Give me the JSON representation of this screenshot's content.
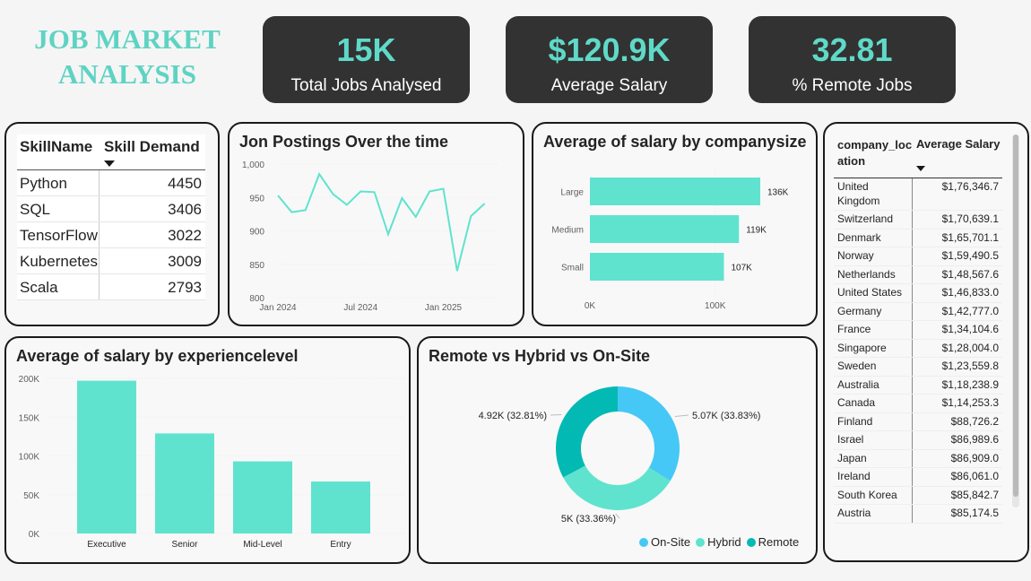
{
  "header": {
    "title_line1": "JOB MARKET",
    "title_line2": "ANALYSIS"
  },
  "kpis": [
    {
      "value": "15K",
      "label": "Total Jobs Analysed"
    },
    {
      "value": "$120.9K",
      "label": "Average Salary"
    },
    {
      "value": "32.81",
      "label": "% Remote Jobs"
    }
  ],
  "skills_table": {
    "headers": [
      "SkillName",
      "Skill Demand"
    ],
    "rows": [
      {
        "name": "Python",
        "value": "4450"
      },
      {
        "name": "SQL",
        "value": "3406"
      },
      {
        "name": "TensorFlow",
        "value": "3022"
      },
      {
        "name": "Kubernetes",
        "value": "3009"
      },
      {
        "name": "Scala",
        "value": "2793"
      }
    ]
  },
  "location_table": {
    "headers": [
      "company_loc ation",
      "Average Salary"
    ],
    "rows": [
      {
        "location": "United Kingdom",
        "salary": "$1,76,346.7"
      },
      {
        "location": "Switzerland",
        "salary": "$1,70,639.1"
      },
      {
        "location": "Denmark",
        "salary": "$1,65,701.1"
      },
      {
        "location": "Norway",
        "salary": "$1,59,490.5"
      },
      {
        "location": "Netherlands",
        "salary": "$1,48,567.6"
      },
      {
        "location": "United States",
        "salary": "$1,46,833.0"
      },
      {
        "location": "Germany",
        "salary": "$1,42,777.0"
      },
      {
        "location": "France",
        "salary": "$1,34,104.6"
      },
      {
        "location": "Singapore",
        "salary": "$1,28,004.0"
      },
      {
        "location": "Sweden",
        "salary": "$1,23,559.8"
      },
      {
        "location": "Australia",
        "salary": "$1,18,238.9"
      },
      {
        "location": "Canada",
        "salary": "$1,14,253.3"
      },
      {
        "location": "Finland",
        "salary": "$88,726.2"
      },
      {
        "location": "Israel",
        "salary": "$86,989.6"
      },
      {
        "location": "Japan",
        "salary": "$86,909.0"
      },
      {
        "location": "Ireland",
        "salary": "$86,061.0"
      },
      {
        "location": "South Korea",
        "salary": "$85,842.7"
      },
      {
        "location": "Austria",
        "salary": "$85,174.5"
      }
    ]
  },
  "colors": {
    "teal": "#5fe3cf",
    "onsite": "#45c8f5",
    "hybrid": "#5fe3cf",
    "remote": "#03b9b4",
    "kpi_bg": "#323232",
    "title": "#5fd3c3"
  },
  "chart_data": [
    {
      "type": "line",
      "title": "Jon Postings Over the time",
      "x": [
        "2024-01",
        "2024-02",
        "2024-03",
        "2024-04",
        "2024-05",
        "2024-06",
        "2024-07",
        "2024-08",
        "2024-09",
        "2024-10",
        "2024-11",
        "2024-12",
        "2025-01",
        "2025-02",
        "2025-03",
        "2025-04",
        "2025-05"
      ],
      "values": [
        953,
        928,
        931,
        985,
        955,
        939,
        959,
        958,
        895,
        949,
        921,
        959,
        963,
        840,
        922,
        941,
        null
      ],
      "x_ticks": [
        "Jan 2024",
        "Jul 2024",
        "Jan 2025"
      ],
      "y_ticks": [
        "1,000",
        "950",
        "900",
        "850",
        "800"
      ],
      "ylim": [
        800,
        1000
      ]
    },
    {
      "type": "bar",
      "orientation": "horizontal",
      "title": "Average of salary by companysize",
      "categories": [
        "Large",
        "Medium",
        "Small"
      ],
      "values": [
        136,
        119,
        107
      ],
      "data_labels": [
        "136K",
        "119K",
        "107K"
      ],
      "x_ticks": [
        "0K",
        "100K"
      ],
      "xlim": [
        0,
        136
      ]
    },
    {
      "type": "bar",
      "title": "Average of salary by experiencelevel",
      "categories": [
        "Executive",
        "Senior",
        "Mid-Level",
        "Entry"
      ],
      "values": [
        197,
        129,
        93,
        67
      ],
      "y_ticks": [
        "200K",
        "150K",
        "100K",
        "50K",
        "0K"
      ],
      "ylim": [
        0,
        200
      ]
    },
    {
      "type": "pie",
      "title": "Remote vs Hybrid vs On-Site",
      "categories": [
        "On-Site",
        "Hybrid",
        "Remote"
      ],
      "values": [
        33.83,
        33.36,
        32.81
      ],
      "data_labels": [
        "5.07K (33.83%)",
        "5K (33.36%)",
        "4.92K (32.81%)"
      ],
      "legend": "bottom-right"
    }
  ]
}
